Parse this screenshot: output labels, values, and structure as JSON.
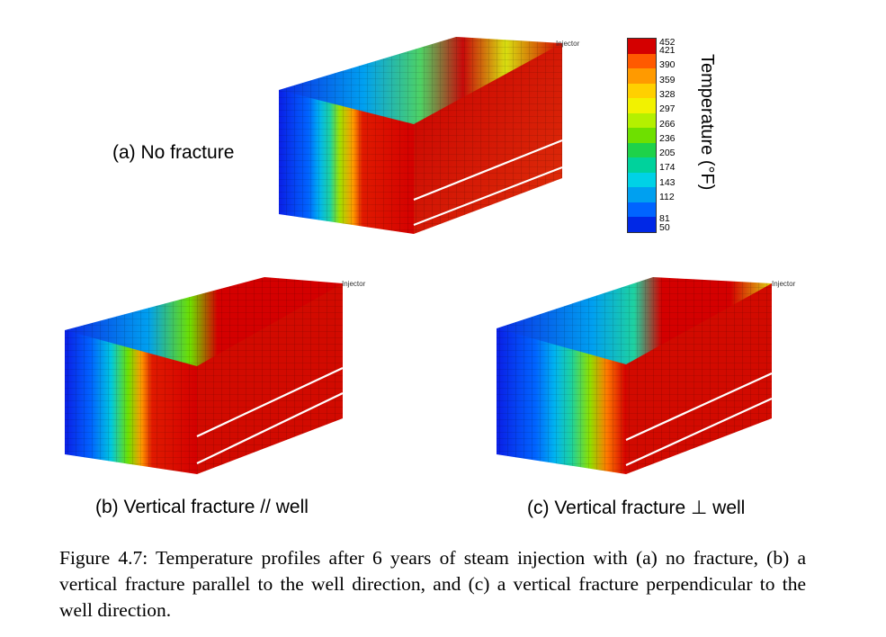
{
  "panels": [
    {
      "label": "(a) No fracture",
      "well_tag": "Injector"
    },
    {
      "label": "(b) Vertical fracture // well",
      "well_tag": "Injector"
    },
    {
      "label": "(c) Vertical fracture ⊥ well",
      "well_tag": "Injector"
    }
  ],
  "colorbar": {
    "title": "Temperature (°F)",
    "ticks": [
      "452",
      "421",
      "390",
      "359",
      "328",
      "297",
      "266",
      "236",
      "205",
      "174",
      "143",
      "112",
      "81",
      "50"
    ],
    "colors": [
      "#d40000",
      "#ff5a00",
      "#ff9a00",
      "#ffd000",
      "#f2f200",
      "#b4f000",
      "#6ee000",
      "#1ed24a",
      "#00d29c",
      "#00d2e6",
      "#00a0f0",
      "#0064ff",
      "#0028e6"
    ]
  },
  "caption": "Figure 4.7: Temperature profiles after 6 years of steam injection with (a) no fracture, (b) a vertical fracture parallel to the well direction, and (c) a vertical fracture perpendicular to the well direction."
}
